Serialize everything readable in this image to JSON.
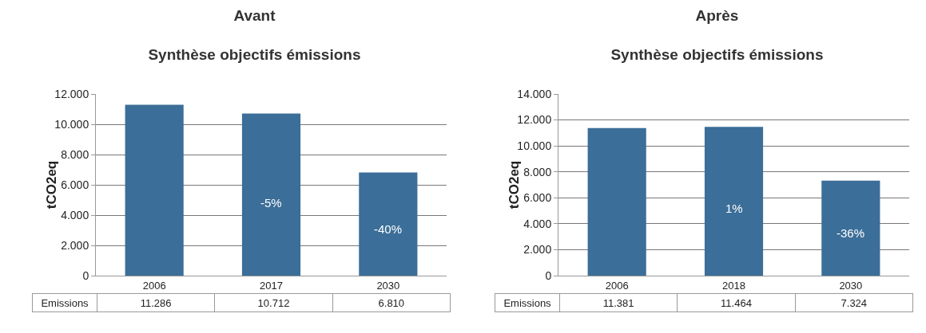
{
  "chart_data": [
    {
      "type": "bar",
      "title": "Avant",
      "subtitle": "Synthèse objectifs émissions",
      "ylabel": "tCO2eq",
      "categories": [
        "2006",
        "2017",
        "2030"
      ],
      "series": [
        {
          "name": "Emissions",
          "color": "#3b6e98",
          "values": [
            11286,
            10712,
            6810
          ],
          "value_labels": [
            "11.286",
            "10.712",
            "6.810"
          ]
        }
      ],
      "ylim": [
        0,
        12000
      ],
      "yticks": [
        {
          "value": 0,
          "label": "0"
        },
        {
          "value": 2000,
          "label": "2.000"
        },
        {
          "value": 4000,
          "label": "4.000"
        },
        {
          "value": 6000,
          "label": "6.000"
        },
        {
          "value": 8000,
          "label": "8.000"
        },
        {
          "value": 10000,
          "label": "10.000"
        },
        {
          "value": 12000,
          "label": "12.000"
        }
      ],
      "grid": "y",
      "legend": false,
      "annotations": [
        "-5%",
        "-40%"
      ]
    },
    {
      "type": "bar",
      "title": "Après",
      "subtitle": "Synthèse objectifs émissions",
      "ylabel": "tCO2eq",
      "categories": [
        "2006",
        "2018",
        "2030"
      ],
      "series": [
        {
          "name": "Emissions",
          "color": "#3b6e98",
          "values": [
            11381,
            11464,
            7324
          ],
          "value_labels": [
            "11.381",
            "11.464",
            "7.324"
          ]
        }
      ],
      "ylim": [
        0,
        14000
      ],
      "yticks": [
        {
          "value": 0,
          "label": "0"
        },
        {
          "value": 2000,
          "label": "2.000"
        },
        {
          "value": 4000,
          "label": "4.000"
        },
        {
          "value": 6000,
          "label": "6.000"
        },
        {
          "value": 8000,
          "label": "8.000"
        },
        {
          "value": 10000,
          "label": "10.000"
        },
        {
          "value": 12000,
          "label": "12.000"
        },
        {
          "value": 14000,
          "label": "14.000"
        }
      ],
      "grid": "y",
      "legend": false,
      "annotations": [
        "1%",
        "-36%"
      ]
    }
  ]
}
